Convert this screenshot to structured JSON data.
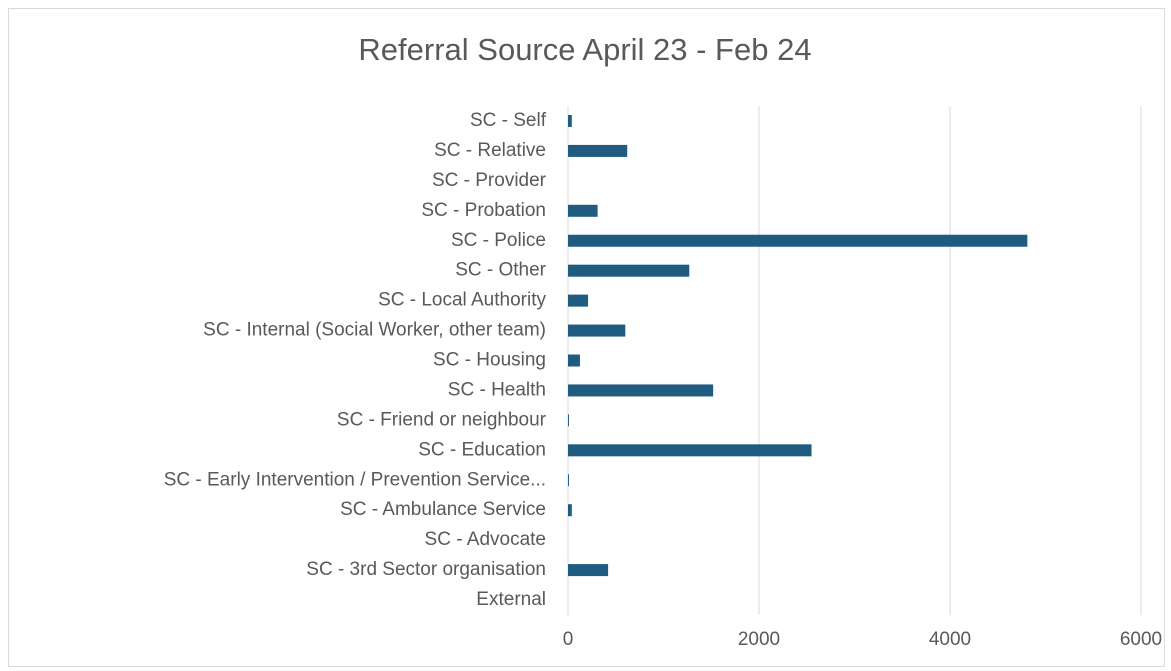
{
  "chart_data": {
    "type": "bar",
    "orientation": "horizontal",
    "title": "Referral Source April 23 - Feb 24",
    "categories": [
      "SC - Self",
      "SC - Relative",
      "SC - Provider",
      "SC - Probation",
      "SC - Police",
      "SC - Other",
      "SC - Local Authority",
      "SC - Internal (Social Worker, other team)",
      "SC - Housing",
      "SC - Health",
      "SC - Friend or neighbour",
      "SC - Education",
      "SC - Early Intervention / Prevention Service...",
      "SC - Ambulance Service",
      "SC - Advocate",
      "SC - 3rd Sector organisation",
      "External"
    ],
    "values": [
      40,
      620,
      0,
      310,
      4810,
      1270,
      210,
      600,
      125,
      1520,
      10,
      2550,
      10,
      40,
      0,
      420,
      0
    ],
    "color": "#1f5c7f",
    "xlim": [
      0,
      6000
    ],
    "xticks": [
      0,
      2000,
      4000,
      6000
    ],
    "grid": true
  }
}
